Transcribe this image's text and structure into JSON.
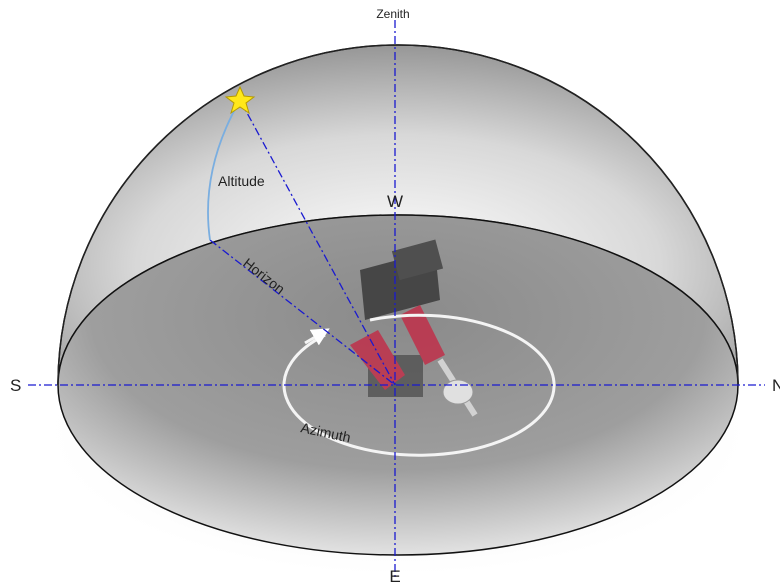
{
  "labels": {
    "zenith": "Zenith",
    "west": "W",
    "south": "S",
    "north": "N",
    "east": "E",
    "altitude": "Altitude",
    "horizon": "Horizon",
    "azimuth": "Azimuth"
  }
}
